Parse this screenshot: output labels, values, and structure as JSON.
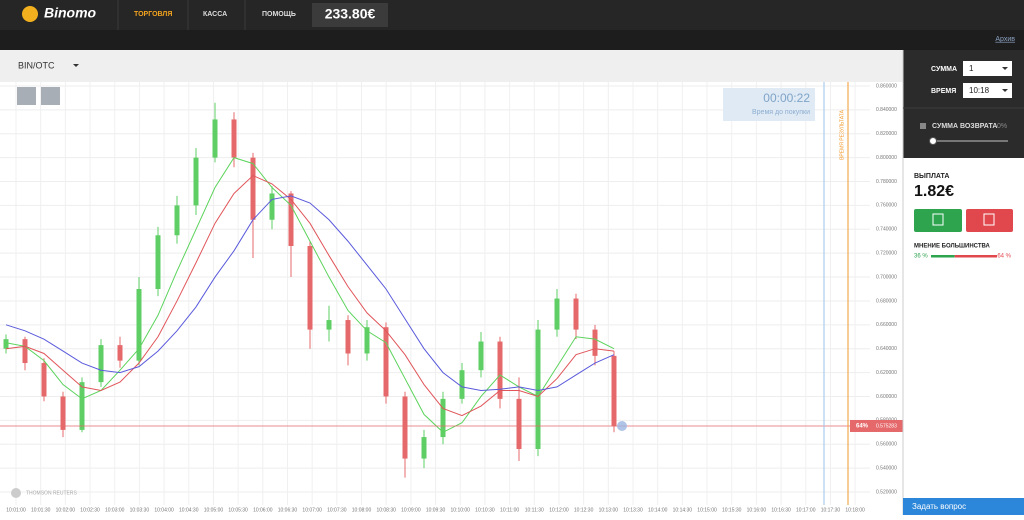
{
  "header": {
    "logo": "Binomo",
    "nav": [
      "ТОРГОВЛЯ",
      "КАССА",
      "ПОМОЩЬ"
    ],
    "balance": "233.80€",
    "archive": "Архив"
  },
  "asset": "BIN/OTC",
  "timer": {
    "time": "00:00:22",
    "caption": "Время до покупки"
  },
  "result_line": "ВРЕМЯ РЕЗУЛЬТАТА",
  "provider": "THOMSON REUTERS",
  "price_tag_pct": "64%",
  "chart_data": {
    "type": "candlestick",
    "ylim": [
      0.52,
      0.86
    ],
    "yticks": [
      {
        "value": 0.86,
        "label": "0.860000"
      },
      {
        "value": 0.84,
        "label": "0.840000"
      },
      {
        "value": 0.82,
        "label": "0.820000"
      },
      {
        "value": 0.8,
        "label": "0.800000"
      },
      {
        "value": 0.78,
        "label": "0.780000"
      },
      {
        "value": 0.76,
        "label": "0.760000"
      },
      {
        "value": 0.74,
        "label": "0.740000"
      },
      {
        "value": 0.72,
        "label": "0.720000"
      },
      {
        "value": 0.7,
        "label": "0.700000"
      },
      {
        "value": 0.68,
        "label": "0.680000"
      },
      {
        "value": 0.66,
        "label": "0.660000"
      },
      {
        "value": 0.64,
        "label": "0.640000"
      },
      {
        "value": 0.62,
        "label": "0.620000"
      },
      {
        "value": 0.6,
        "label": "0.600000"
      },
      {
        "value": 0.58,
        "label": "0.580000"
      },
      {
        "value": 0.56,
        "label": "0.560000"
      },
      {
        "value": 0.54,
        "label": "0.540000"
      },
      {
        "value": 0.52,
        "label": "0.520000"
      }
    ],
    "xticks": [
      "10:01:00",
      "10:01:30",
      "10:02:00",
      "10:02:30",
      "10:03:00",
      "10:03:30",
      "10:04:00",
      "10:04:30",
      "10:05:00",
      "10:05:30",
      "10:06:00",
      "10:06:30",
      "10:07:00",
      "10:07:30",
      "10:08:00",
      "10:08:30",
      "10:09:00",
      "10:09:30",
      "10:10:00",
      "10:10:30",
      "10:11:00",
      "10:11:30",
      "10:12:00",
      "10:12:30",
      "10:13:00",
      "10:13:30",
      "10:14:00",
      "10:14:30",
      "10:15:00",
      "10:15:30",
      "10:16:00",
      "10:16:30",
      "10:17:00",
      "10:17:30",
      "10:18:00"
    ],
    "open": [
      0.64,
      0.648,
      0.628,
      0.6,
      0.572,
      0.612,
      0.643,
      0.63,
      0.69,
      0.735,
      0.76,
      0.8,
      0.832,
      0.8,
      0.748,
      0.77,
      0.726,
      0.656,
      0.664,
      0.636,
      0.658,
      0.6,
      0.548,
      0.566,
      0.598,
      0.622,
      0.646,
      0.598,
      0.556,
      0.656,
      0.682,
      0.656,
      0.634
    ],
    "high": [
      0.652,
      0.65,
      0.632,
      0.604,
      0.616,
      0.648,
      0.65,
      0.7,
      0.742,
      0.768,
      0.808,
      0.846,
      0.838,
      0.804,
      0.776,
      0.772,
      0.73,
      0.676,
      0.668,
      0.664,
      0.662,
      0.604,
      0.572,
      0.604,
      0.628,
      0.654,
      0.65,
      0.616,
      0.664,
      0.69,
      0.686,
      0.66,
      0.638
    ],
    "low": [
      0.636,
      0.622,
      0.596,
      0.566,
      0.57,
      0.608,
      0.624,
      0.626,
      0.684,
      0.728,
      0.752,
      0.796,
      0.792,
      0.716,
      0.74,
      0.7,
      0.64,
      0.646,
      0.626,
      0.63,
      0.594,
      0.532,
      0.54,
      0.56,
      0.594,
      0.616,
      0.59,
      0.546,
      0.55,
      0.65,
      0.648,
      0.626,
      0.57
    ],
    "close": [
      0.648,
      0.628,
      0.6,
      0.572,
      0.612,
      0.643,
      0.63,
      0.69,
      0.735,
      0.76,
      0.8,
      0.832,
      0.8,
      0.748,
      0.77,
      0.726,
      0.656,
      0.664,
      0.636,
      0.658,
      0.6,
      0.548,
      0.566,
      0.598,
      0.622,
      0.646,
      0.598,
      0.556,
      0.656,
      0.682,
      0.656,
      0.634,
      0.575
    ],
    "series": [
      {
        "color": "#5bd35b",
        "values": [
          0.645,
          0.642,
          0.63,
          0.61,
          0.598,
          0.605,
          0.622,
          0.64,
          0.668,
          0.705,
          0.74,
          0.775,
          0.8,
          0.795,
          0.775,
          0.76,
          0.73,
          0.7,
          0.672,
          0.655,
          0.645,
          0.615,
          0.585,
          0.57,
          0.578,
          0.6,
          0.618,
          0.608,
          0.6,
          0.625,
          0.65,
          0.648,
          0.64
        ]
      },
      {
        "color": "#e0555a",
        "values": [
          0.64,
          0.642,
          0.636,
          0.622,
          0.608,
          0.605,
          0.612,
          0.628,
          0.65,
          0.68,
          0.712,
          0.745,
          0.77,
          0.785,
          0.778,
          0.765,
          0.745,
          0.718,
          0.692,
          0.67,
          0.655,
          0.635,
          0.61,
          0.59,
          0.584,
          0.592,
          0.605,
          0.605,
          0.6,
          0.615,
          0.635,
          0.64,
          0.638
        ]
      },
      {
        "color": "#5a5adc",
        "values": [
          0.66,
          0.655,
          0.648,
          0.638,
          0.628,
          0.622,
          0.62,
          0.625,
          0.638,
          0.655,
          0.675,
          0.7,
          0.722,
          0.748,
          0.765,
          0.768,
          0.762,
          0.748,
          0.73,
          0.71,
          0.69,
          0.665,
          0.64,
          0.62,
          0.608,
          0.605,
          0.606,
          0.608,
          0.605,
          0.608,
          0.618,
          0.628,
          0.635
        ]
      }
    ],
    "up_color": "#5fcf65",
    "down_color": "#e5696b",
    "current_price": {
      "value": 0.575283,
      "label": "0.575283"
    },
    "grid": true
  },
  "panel": {
    "amount_label": "СУММА",
    "amount": "1",
    "time_label": "ВРЕМЯ",
    "time": "10:18",
    "refund_label": "СУММА ВОЗВРАТА",
    "refund": "0%",
    "payout_label": "ВЫПЛАТА",
    "payout": "1.82€",
    "majority": {
      "label": "МНЕНИЕ БОЛЬШИНСТВА",
      "values": [
        36,
        64
      ],
      "value_labels": [
        "36 %",
        "64 %"
      ]
    },
    "help": "Задать вопрос"
  }
}
